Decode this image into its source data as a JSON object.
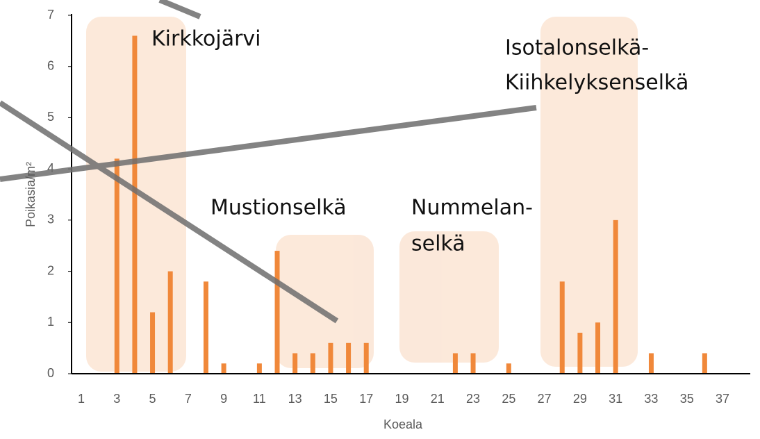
{
  "chart_data": {
    "type": "bar",
    "categories": [
      "1",
      null,
      "3",
      null,
      "5",
      null,
      "7",
      null,
      "9",
      null,
      "11",
      null,
      "13",
      null,
      "15",
      null,
      "17",
      null,
      "19",
      null,
      "21",
      null,
      "23",
      null,
      "25",
      null,
      "27",
      null,
      "29",
      null,
      "31",
      null,
      "33",
      null,
      "35",
      null,
      "37"
    ],
    "values": [
      0,
      0,
      4.2,
      6.6,
      1.2,
      2.0,
      0,
      1.8,
      0.2,
      0,
      0.2,
      2.4,
      0.4,
      0.4,
      0.6,
      0.6,
      0.6,
      0,
      0,
      0,
      0,
      0.4,
      0.4,
      0,
      0.2,
      0,
      0,
      1.8,
      0.8,
      1.0,
      3.0,
      0,
      0.4,
      0,
      0,
      0.4,
      0
    ],
    "color": "#f0883a",
    "ylim": [
      0,
      7
    ],
    "yticks": [
      0,
      1,
      2,
      3,
      4,
      5,
      6,
      7
    ],
    "xlabel": "Koeala",
    "ylabel": "Poikasia/m²",
    "annotations": [
      {
        "lines": [
          "Kirkkojärvi"
        ]
      },
      {
        "lines": [
          "Isotalonselkä-",
          "Kiihkelyksenselkä"
        ]
      },
      {
        "lines": [
          "Mustionselkä"
        ]
      },
      {
        "lines": [
          "Nummelan-",
          "selkä"
        ]
      }
    ]
  }
}
